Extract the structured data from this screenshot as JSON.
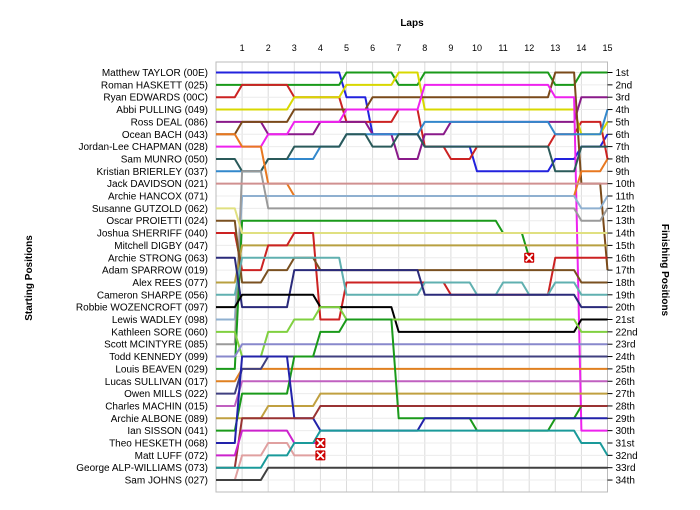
{
  "chart_data": {
    "type": "line",
    "title": "Laps",
    "xlabel": "Laps",
    "ylabel_left": "Starting Positions",
    "ylabel_right": "Finishing Positions",
    "x": [
      0,
      1,
      2,
      3,
      4,
      5,
      6,
      7,
      8,
      9,
      10,
      11,
      12,
      13,
      14,
      15
    ],
    "x_ticks": [
      "1",
      "2",
      "3",
      "4",
      "5",
      "6",
      "7",
      "8",
      "9",
      "10",
      "11",
      "12",
      "13",
      "14",
      "15"
    ],
    "positions_count": 34,
    "starting_labels": [
      "Matthew TAYLOR (00E)",
      "Roman HASKETT (025)",
      "Ryan EDWARDS (00C)",
      "Abbi PULLING (049)",
      "Ross DEAL (086)",
      "Ocean BACH (043)",
      "Jordan-Lee CHAPMAN (028)",
      "Sam MUNRO (050)",
      "Kristian BRIERLEY (037)",
      "Jack DAVIDSON (021)",
      "Archie HANCOX (071)",
      "Susanne GUTZOLD (062)",
      "Oscar PROIETTI (024)",
      "Joshua SHERRIFF (040)",
      "Mitchell DIGBY (047)",
      "Archie STRONG (063)",
      "Adam SPARROW (019)",
      "Alex REES (077)",
      "Cameron SHARPE (056)",
      "Robbie WOZENCROFT (097)",
      "Lewis WADLEY (098)",
      "Kathleen SORE (060)",
      "Scott MCINTYRE (085)",
      "Todd KENNEDY (099)",
      "Louis BEAVEN (029)",
      "Lucas SULLIVAN (017)",
      "Owen MILLS (022)",
      "Charles MACHIN (015)",
      "Archie ALBONE (089)",
      "Ian SISSON (041)",
      "Theo HESKETH (068)",
      "Matt LUFF (072)",
      "George ALP-WILLIAMS (073)",
      "Sam JOHNS (027)"
    ],
    "finishing_labels": [
      "1st",
      "2nd",
      "3rd",
      "4th",
      "5th",
      "6th",
      "7th",
      "8th",
      "9th",
      "10th",
      "11th",
      "12th",
      "13th",
      "14th",
      "15th",
      "16th",
      "17th",
      "18th",
      "19th",
      "20th",
      "21st",
      "22nd",
      "23rd",
      "24th",
      "25th",
      "26th",
      "27th",
      "28th",
      "29th",
      "30th",
      "31st",
      "32nd",
      "33rd",
      "34th"
    ],
    "series": [
      {
        "color": "#2222dd",
        "positions": [
          1,
          1,
          1,
          1,
          1,
          3,
          6,
          6,
          7,
          7,
          9,
          9,
          9,
          8,
          7,
          6
        ]
      },
      {
        "color": "#1a9a1a",
        "positions": [
          2,
          2,
          2,
          2,
          2,
          1,
          1,
          2,
          1,
          1,
          1,
          1,
          1,
          2,
          1,
          1
        ]
      },
      {
        "color": "#cc2222",
        "positions": [
          3,
          2,
          2,
          3,
          3,
          5,
          5,
          4,
          7,
          8,
          7,
          7,
          7,
          6,
          5,
          8
        ]
      },
      {
        "color": "#d8d800",
        "positions": [
          4,
          4,
          4,
          3,
          3,
          2,
          2,
          1,
          4,
          4,
          4,
          4,
          4,
          4,
          6,
          5
        ]
      },
      {
        "color": "#8a1a8a",
        "positions": [
          5,
          5,
          6,
          6,
          5,
          5,
          6,
          8,
          6,
          5,
          5,
          5,
          5,
          5,
          3,
          3
        ]
      },
      {
        "color": "#7a4a1a",
        "positions": [
          6,
          5,
          5,
          4,
          4,
          4,
          3,
          3,
          3,
          3,
          3,
          3,
          3,
          1,
          10,
          17
        ]
      },
      {
        "color": "#ee22ee",
        "positions": [
          7,
          7,
          6,
          5,
          5,
          4,
          4,
          4,
          2,
          2,
          2,
          2,
          2,
          3,
          30,
          30
        ]
      },
      {
        "color": "#3388cc",
        "positions": [
          9,
          9,
          8,
          8,
          7,
          6,
          6,
          6,
          5,
          5,
          5,
          5,
          5,
          6,
          6,
          4
        ]
      },
      {
        "color": "#2a5a5a",
        "positions": [
          8,
          9,
          8,
          7,
          7,
          6,
          7,
          6,
          7,
          7,
          7,
          7,
          7,
          9,
          7,
          7
        ]
      },
      {
        "color": "#e87820",
        "positions": [
          6,
          7,
          10,
          11,
          11,
          11,
          11,
          11,
          11,
          11,
          11,
          11,
          11,
          11,
          9,
          8
        ]
      },
      {
        "color": "#8fb0d0",
        "positions": [
          21,
          11,
          11,
          11,
          11,
          11,
          11,
          11,
          11,
          11,
          11,
          11,
          11,
          11,
          12,
          11
        ]
      },
      {
        "color": "#9a9a9a",
        "positions": [
          23,
          9,
          12,
          12,
          12,
          12,
          12,
          12,
          12,
          12,
          12,
          12,
          12,
          12,
          13,
          12
        ]
      },
      {
        "color": "#1a9a1a",
        "positions": [
          25,
          13,
          13,
          13,
          13,
          13,
          13,
          13,
          13,
          13,
          13,
          14,
          16,
          null,
          null,
          null
        ]
      },
      {
        "color": "#e0e080",
        "positions": [
          12,
          14,
          14,
          14,
          14,
          14,
          14,
          14,
          14,
          14,
          14,
          14,
          14,
          14,
          14,
          14
        ]
      },
      {
        "color": "#b8a040",
        "positions": [
          18,
          15,
          15,
          15,
          15,
          15,
          15,
          15,
          15,
          15,
          15,
          15,
          15,
          15,
          15,
          15
        ]
      },
      {
        "color": "#d09090",
        "positions": [
          10,
          10,
          10,
          10,
          10,
          10,
          10,
          10,
          10,
          10,
          10,
          10,
          10,
          10,
          10,
          10
        ]
      },
      {
        "color": "#cc2222",
        "positions": [
          14,
          17,
          15,
          14,
          21,
          18,
          18,
          18,
          18,
          19,
          19,
          19,
          19,
          16,
          16,
          16
        ]
      },
      {
        "color": "#7a5020",
        "positions": [
          13,
          18,
          17,
          16,
          17,
          17,
          17,
          17,
          17,
          17,
          17,
          17,
          17,
          17,
          18,
          18
        ]
      },
      {
        "color": "#60b0b0",
        "positions": [
          19,
          16,
          16,
          16,
          16,
          19,
          19,
          19,
          18,
          18,
          19,
          18,
          19,
          18,
          19,
          19
        ]
      },
      {
        "color": "#2a2a7a",
        "positions": [
          16,
          20,
          20,
          17,
          17,
          17,
          17,
          17,
          19,
          19,
          19,
          19,
          19,
          19,
          20,
          20
        ]
      },
      {
        "color": "#000000",
        "positions": [
          20,
          19,
          19,
          19,
          20,
          20,
          20,
          22,
          22,
          22,
          22,
          22,
          22,
          22,
          21,
          21
        ]
      },
      {
        "color": "#80d040",
        "positions": [
          22,
          24,
          22,
          21,
          20,
          21,
          21,
          21,
          21,
          21,
          21,
          21,
          21,
          21,
          22,
          22
        ]
      },
      {
        "color": "#8888cc",
        "positions": [
          24,
          23,
          23,
          23,
          23,
          23,
          23,
          23,
          23,
          23,
          23,
          23,
          23,
          23,
          23,
          23
        ]
      },
      {
        "color": "#e08020",
        "positions": [
          26,
          25,
          25,
          25,
          25,
          25,
          25,
          25,
          25,
          25,
          25,
          25,
          25,
          25,
          25,
          25
        ]
      },
      {
        "color": "#404080",
        "positions": [
          27,
          25,
          24,
          24,
          24,
          24,
          24,
          24,
          24,
          24,
          24,
          24,
          24,
          24,
          24,
          24
        ]
      },
      {
        "color": "#c060c0",
        "positions": [
          28,
          26,
          26,
          26,
          26,
          26,
          26,
          26,
          26,
          26,
          26,
          26,
          26,
          26,
          26,
          26
        ]
      },
      {
        "color": "#c0a040",
        "positions": [
          29,
          29,
          28,
          28,
          27,
          27,
          27,
          27,
          27,
          27,
          27,
          27,
          27,
          27,
          27,
          27
        ]
      },
      {
        "color": "#1a9a1a",
        "positions": [
          30,
          27,
          27,
          24,
          22,
          21,
          21,
          29,
          29,
          29,
          30,
          30,
          30,
          29,
          28,
          28
        ]
      },
      {
        "color": "#2222aa",
        "positions": [
          31,
          24,
          24,
          29,
          30,
          30,
          30,
          30,
          29,
          29,
          29,
          29,
          29,
          29,
          29,
          29
        ]
      },
      {
        "color": "#993333",
        "positions": [
          33,
          29,
          29,
          29,
          28,
          28,
          28,
          28,
          28,
          28,
          28,
          28,
          28,
          28,
          28,
          28
        ]
      },
      {
        "color": "#cc22cc",
        "positions": [
          32,
          30,
          30,
          31,
          31,
          null,
          null,
          null,
          null,
          null,
          null,
          null,
          null,
          null,
          null,
          null
        ]
      },
      {
        "color": "#e0a0a0",
        "positions": [
          34,
          32,
          31,
          32,
          32,
          null,
          null,
          null,
          null,
          null,
          null,
          null,
          null,
          null,
          null,
          null
        ]
      },
      {
        "color": "#1a9a9a",
        "positions": [
          33,
          33,
          32,
          31,
          30,
          30,
          30,
          30,
          30,
          30,
          30,
          30,
          30,
          30,
          31,
          32
        ]
      },
      {
        "color": "#404040",
        "positions": [
          34,
          34,
          33,
          33,
          33,
          33,
          33,
          33,
          33,
          33,
          33,
          33,
          33,
          33,
          33,
          33
        ]
      }
    ],
    "retirements": [
      {
        "lap": 4,
        "position": 31
      },
      {
        "lap": 4,
        "position": 32
      },
      {
        "lap": 12,
        "position": 16
      }
    ],
    "grid": true
  }
}
